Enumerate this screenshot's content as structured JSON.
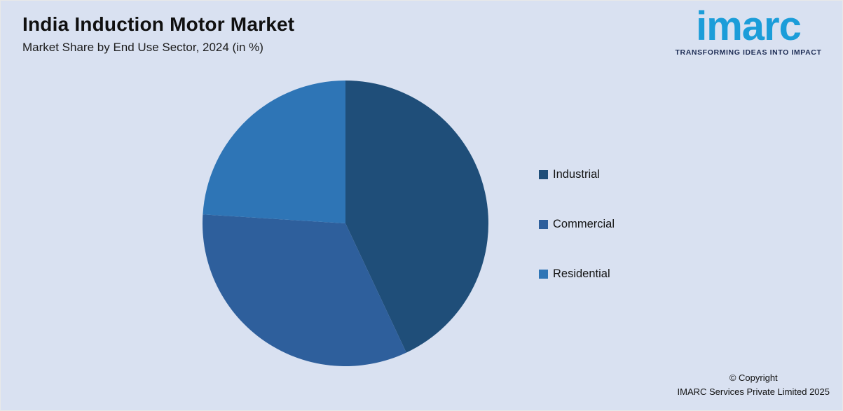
{
  "header": {
    "title": "India Induction Motor Market",
    "subtitle": "Market Share by End Use Sector, 2024 (in %)"
  },
  "logo": {
    "brand": "imarc",
    "tagline": "TRANSFORMING IDEAS INTO IMPACT",
    "brand_color": "#1b9dd9",
    "tagline_color": "#1e2d55"
  },
  "footer": {
    "copyright_line1": "© Copyright",
    "copyright_line2": "IMARC Services Private Limited 2025"
  },
  "chart_data": {
    "type": "pie",
    "title": "India Induction Motor Market",
    "subtitle": "Market Share by End Use Sector, 2024 (in %)",
    "categories": [
      "Industrial",
      "Commercial",
      "Residential"
    ],
    "values": [
      43,
      33,
      24
    ],
    "colors": [
      "#1f4e79",
      "#2e5f9c",
      "#2e75b6"
    ],
    "start_angle_deg": 0,
    "direction": "clockwise",
    "legend_position": "right",
    "data_labels": false,
    "background_color": "#d9e1f1"
  }
}
